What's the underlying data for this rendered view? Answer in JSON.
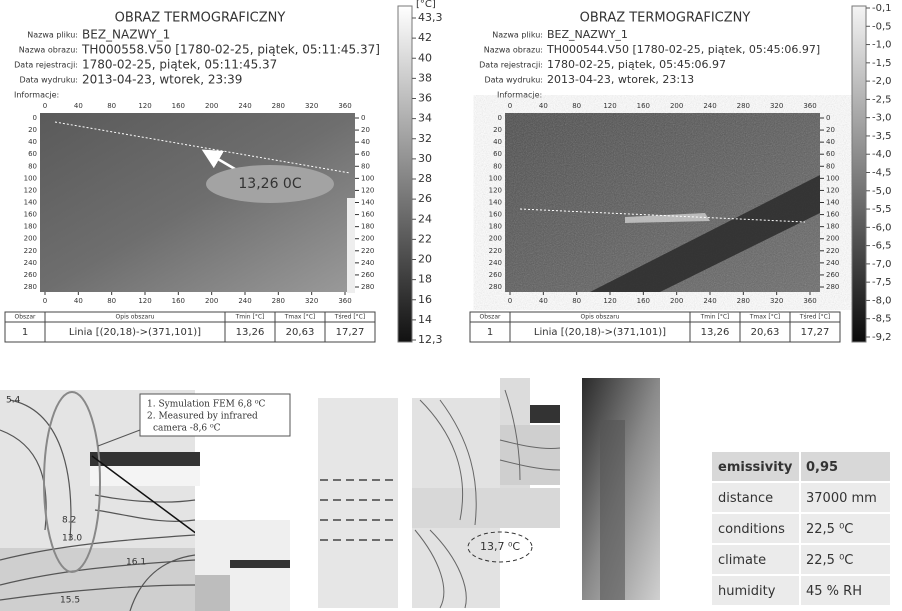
{
  "panels": [
    {
      "title": "OBRAZ TERMOGRAFICZNY",
      "file_label": "Nazwa pliku:",
      "file": "BEZ_NAZWY_1",
      "image_label": "Nazwa obrazu:",
      "image": "TH000558.V50 [1780-02-25, piątek, 05:11:45.37]",
      "date_label": "Data rejestracji:",
      "date": "1780-02-25, piątek, 05:11:45.37",
      "print_label": "Data wydruku:",
      "print": "2013-04-23, wtorek, 23:39",
      "info_label": "Informacje:",
      "x_ticks": [
        "0",
        "40",
        "80",
        "120",
        "160",
        "200",
        "240",
        "280",
        "320",
        "360"
      ],
      "y_ticks": [
        "0",
        "20",
        "40",
        "60",
        "80",
        "100",
        "120",
        "140",
        "160",
        "180",
        "200",
        "220",
        "240",
        "260",
        "280"
      ],
      "scale_unit": "[°C]",
      "scale": [
        "43,3",
        "42",
        "40",
        "38",
        "36",
        "34",
        "32",
        "30",
        "28",
        "26",
        "24",
        "22",
        "20",
        "18",
        "16",
        "14",
        "12,3"
      ],
      "table": {
        "header": [
          "Obszar",
          "Opis obszaru",
          "Tmin [°C]",
          "Tmax [°C]",
          "Tśred [°C]"
        ],
        "rows": [
          [
            "1",
            "Linia [(20,18)->(371,101)]",
            "13,26",
            "20,63",
            "17,27"
          ]
        ]
      },
      "callout": "13,26 0C"
    },
    {
      "title": "OBRAZ TERMOGRAFICZNY",
      "file_label": "Nazwa pliku:",
      "file": "BEZ_NAZWY_1",
      "image_label": "Nazwa obrazu:",
      "image": "TH000544.V50 [1780-02-25, piątek, 05:45:06.97]",
      "date_label": "Data rejestracji:",
      "date": "1780-02-25, piątek, 05:45:06.97",
      "print_label": "Data wydruku:",
      "print": "2013-04-23, wtorek, 23:13",
      "info_label": "Informacje:",
      "x_ticks": [
        "0",
        "40",
        "80",
        "120",
        "160",
        "200",
        "240",
        "280",
        "320",
        "360"
      ],
      "y_ticks": [
        "0",
        "20",
        "40",
        "60",
        "80",
        "100",
        "120",
        "140",
        "160",
        "180",
        "200",
        "220",
        "240",
        "260",
        "280"
      ],
      "scale": [
        "-0,1",
        "-0,5",
        "-1,0",
        "-1,5",
        "-2,0",
        "-2,5",
        "-3,0",
        "-3,5",
        "-4,0",
        "-4,5",
        "-5,0",
        "-5,5",
        "-6,0",
        "-6,5",
        "-7,0",
        "-7,5",
        "-8,0",
        "-8,5",
        "-9,2"
      ],
      "table": {
        "header": [
          "Obszar",
          "Opis obszaru",
          "Tmin [°C]",
          "Tmax [°C]",
          "Tśred [°C]"
        ],
        "rows": [
          [
            "1",
            "Linia [(20,18)->(371,101)]",
            "13,26",
            "20,63",
            "17,27"
          ]
        ]
      }
    }
  ],
  "fem": {
    "note": [
      "1. Symulation FEM 6,8 ⁰C",
      "2. Measured by infrared",
      "camera -8,6 ⁰C"
    ],
    "contours": [
      "5.4",
      "8.2",
      "13.0",
      "16.1",
      "15.5"
    ],
    "middle_label": "13,7 ⁰C"
  },
  "properties": {
    "rows": [
      [
        "emissivity",
        "0,95"
      ],
      [
        "distance",
        "37000 mm"
      ],
      [
        "conditions",
        "22,5 ⁰C"
      ],
      [
        "climate",
        "22,5 ⁰C"
      ],
      [
        "humidity",
        "45 % RH"
      ]
    ]
  }
}
